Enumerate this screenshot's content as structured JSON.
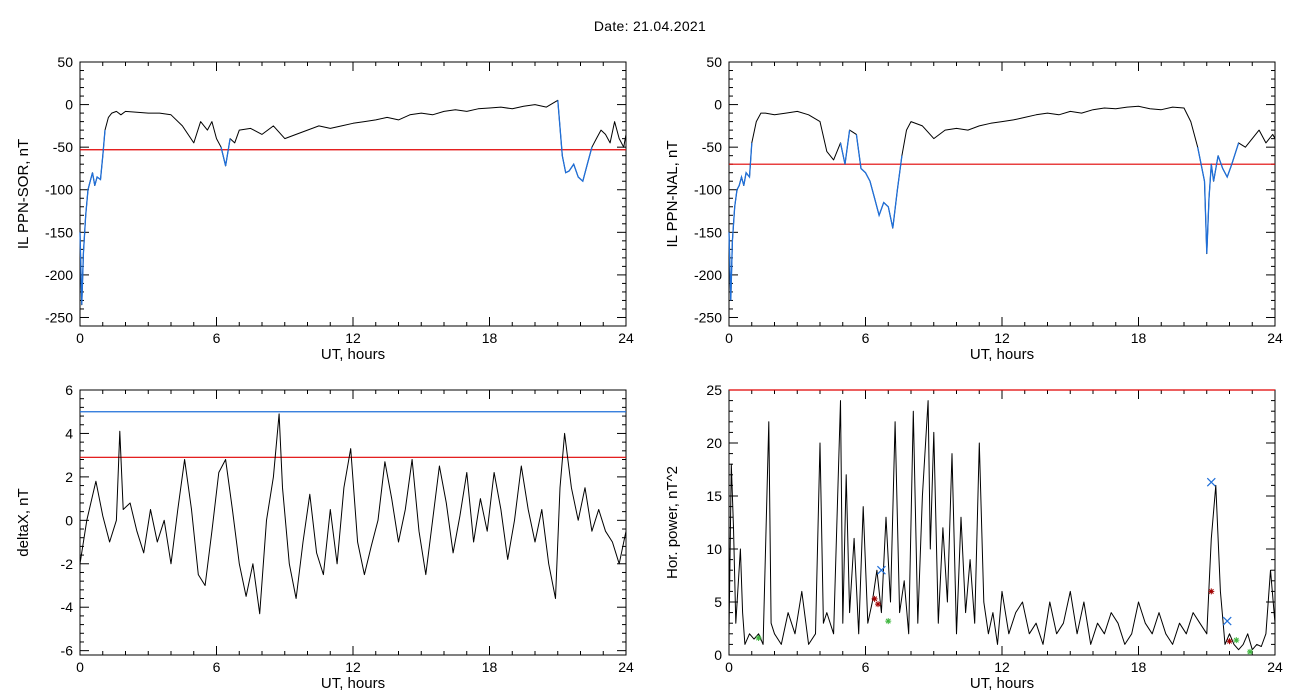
{
  "header": {
    "title": "Date:  21.04.2021"
  },
  "colors": {
    "black": "#000000",
    "red": "#e00000",
    "blue": "#1f6fd9",
    "green": "#3fb63f",
    "darkred": "#a00000"
  },
  "chart_data": [
    {
      "id": "sor",
      "type": "line",
      "xlabel": "UT, hours",
      "ylabel": "IL PPN-SOR, nT",
      "xlim": [
        0,
        24
      ],
      "ylim": [
        -260,
        50
      ],
      "xticks": [
        0,
        6,
        12,
        18,
        24
      ],
      "yticks": [
        50,
        0,
        -50,
        -100,
        -150,
        -200,
        -250
      ],
      "threshold": {
        "value": -53,
        "color": "red"
      },
      "below_threshold_color": "blue",
      "series": [
        {
          "x": [
            0,
            0.08,
            0.15,
            0.25,
            0.35,
            0.45,
            0.55,
            0.65,
            0.75,
            0.9,
            1.0,
            1.1,
            1.25,
            1.4,
            1.6,
            1.8,
            2.0,
            2.5,
            3.0,
            3.5,
            4.0,
            4.5,
            5.0,
            5.3,
            5.6,
            5.8,
            6.0,
            6.2,
            6.4,
            6.6,
            6.8,
            7.0,
            7.5,
            8.0,
            8.5,
            9.0,
            9.5,
            10.0,
            10.5,
            11.0,
            11.5,
            12.0,
            12.5,
            13.0,
            13.5,
            14.0,
            14.5,
            15.0,
            15.5,
            16.0,
            16.5,
            17.0,
            17.5,
            18.0,
            18.5,
            19.0,
            19.5,
            20.0,
            20.5,
            21.0,
            21.2,
            21.35,
            21.5,
            21.7,
            21.9,
            22.1,
            22.3,
            22.5,
            22.7,
            22.9,
            23.1,
            23.3,
            23.5,
            23.7,
            23.9,
            24.0
          ],
          "y": [
            -150,
            -235,
            -175,
            -130,
            -100,
            -90,
            -80,
            -95,
            -85,
            -88,
            -60,
            -30,
            -15,
            -10,
            -8,
            -12,
            -8,
            -9,
            -10,
            -10,
            -12,
            -25,
            -45,
            -20,
            -30,
            -20,
            -40,
            -50,
            -72,
            -40,
            -45,
            -30,
            -28,
            -35,
            -25,
            -40,
            -35,
            -30,
            -25,
            -28,
            -25,
            -22,
            -20,
            -18,
            -15,
            -18,
            -12,
            -10,
            -12,
            -8,
            -6,
            -8,
            -5,
            -4,
            -3,
            -5,
            -2,
            0,
            -3,
            5,
            -60,
            -80,
            -78,
            -70,
            -85,
            -90,
            -70,
            -50,
            -40,
            -30,
            -35,
            -45,
            -20,
            -40,
            -50,
            -35
          ]
        }
      ]
    },
    {
      "id": "nal",
      "type": "line",
      "xlabel": "UT, hours",
      "ylabel": "IL PPN-NAL, nT",
      "xlim": [
        0,
        24
      ],
      "ylim": [
        -260,
        50
      ],
      "xticks": [
        0,
        6,
        12,
        18,
        24
      ],
      "yticks": [
        50,
        0,
        -50,
        -100,
        -150,
        -200,
        -250
      ],
      "threshold": {
        "value": -70,
        "color": "red"
      },
      "below_threshold_color": "blue",
      "series": [
        {
          "x": [
            0,
            0.08,
            0.15,
            0.25,
            0.35,
            0.45,
            0.55,
            0.65,
            0.75,
            0.9,
            1.0,
            1.2,
            1.4,
            1.6,
            2.0,
            2.5,
            3.0,
            3.5,
            4.0,
            4.3,
            4.6,
            4.9,
            5.1,
            5.3,
            5.6,
            5.8,
            6.0,
            6.2,
            6.4,
            6.6,
            6.8,
            7.0,
            7.2,
            7.4,
            7.6,
            7.8,
            8.0,
            8.5,
            9.0,
            9.5,
            10.0,
            10.5,
            11.0,
            11.5,
            12.0,
            12.5,
            13.0,
            13.5,
            14.0,
            14.5,
            15.0,
            15.5,
            16.0,
            16.5,
            17.0,
            17.5,
            18.0,
            18.5,
            19.0,
            19.5,
            20.0,
            20.3,
            20.6,
            20.9,
            21.0,
            21.1,
            21.2,
            21.3,
            21.5,
            21.7,
            21.9,
            22.1,
            22.4,
            22.7,
            23.0,
            23.3,
            23.6,
            23.9,
            24.0
          ],
          "y": [
            -150,
            -230,
            -160,
            -120,
            -100,
            -95,
            -85,
            -95,
            -80,
            -85,
            -45,
            -20,
            -10,
            -10,
            -12,
            -10,
            -8,
            -12,
            -20,
            -55,
            -65,
            -45,
            -70,
            -30,
            -35,
            -75,
            -80,
            -90,
            -110,
            -130,
            -115,
            -120,
            -145,
            -100,
            -60,
            -30,
            -20,
            -25,
            -40,
            -30,
            -28,
            -30,
            -25,
            -22,
            -20,
            -18,
            -15,
            -12,
            -10,
            -12,
            -8,
            -10,
            -6,
            -4,
            -5,
            -3,
            -2,
            -5,
            -6,
            -3,
            -4,
            -20,
            -50,
            -90,
            -175,
            -110,
            -70,
            -90,
            -60,
            -75,
            -85,
            -70,
            -45,
            -50,
            -40,
            -30,
            -45,
            -35,
            -40
          ]
        }
      ]
    },
    {
      "id": "deltax",
      "type": "line",
      "xlabel": "UT, hours",
      "ylabel": "deltaX, nT",
      "xlim": [
        0,
        24
      ],
      "ylim": [
        -6.2,
        6
      ],
      "xticks": [
        0,
        6,
        12,
        18,
        24
      ],
      "yticks": [
        6,
        4,
        2,
        0,
        -2,
        -4,
        -6
      ],
      "thresholds": [
        {
          "value": 5.0,
          "color": "blue"
        },
        {
          "value": 2.9,
          "color": "red"
        }
      ],
      "series": [
        {
          "x": [
            0,
            0.3,
            0.7,
            1.0,
            1.3,
            1.6,
            1.75,
            1.9,
            2.2,
            2.5,
            2.8,
            3.1,
            3.4,
            3.7,
            4.0,
            4.3,
            4.6,
            4.9,
            5.2,
            5.5,
            5.8,
            6.1,
            6.4,
            6.7,
            7.0,
            7.3,
            7.6,
            7.9,
            8.2,
            8.5,
            8.75,
            8.9,
            9.2,
            9.5,
            9.8,
            10.1,
            10.4,
            10.7,
            11.0,
            11.3,
            11.6,
            11.9,
            12.2,
            12.5,
            12.8,
            13.1,
            13.4,
            13.7,
            14.0,
            14.3,
            14.6,
            14.9,
            15.2,
            15.5,
            15.8,
            16.1,
            16.4,
            16.7,
            17.0,
            17.3,
            17.6,
            17.9,
            18.2,
            18.5,
            18.8,
            19.1,
            19.4,
            19.7,
            20.0,
            20.3,
            20.6,
            20.9,
            21.1,
            21.3,
            21.6,
            21.9,
            22.2,
            22.5,
            22.8,
            23.1,
            23.4,
            23.7,
            24.0
          ],
          "y": [
            -2,
            0,
            1.8,
            0.2,
            -1,
            0,
            4.1,
            0.5,
            0.8,
            -0.5,
            -1.5,
            0.5,
            -1,
            0,
            -2,
            0.5,
            2.8,
            0.5,
            -2.5,
            -3,
            -0.5,
            2.2,
            2.8,
            0.5,
            -2,
            -3.5,
            -2,
            -4.3,
            0,
            2,
            4.9,
            1.5,
            -2,
            -3.6,
            -1,
            1.2,
            -1.5,
            -2.5,
            0.5,
            -2,
            1.5,
            3.3,
            -1,
            -2.5,
            -1.2,
            0,
            2.7,
            1,
            -1,
            0.5,
            2.8,
            -0.5,
            -2.5,
            0,
            2.5,
            0.8,
            -1.5,
            0.2,
            2.2,
            -1,
            1,
            -0.5,
            2.2,
            0.5,
            -1.8,
            0,
            2.5,
            0.5,
            -1,
            0.5,
            -2,
            -3.6,
            1.5,
            4,
            1.5,
            0,
            1.5,
            -0.5,
            0.5,
            -0.5,
            -1,
            -2,
            -0.5
          ]
        }
      ]
    },
    {
      "id": "power",
      "type": "line",
      "xlabel": "UT, hours",
      "ylabel": "Hor. power, nT^2",
      "xlim": [
        0,
        24
      ],
      "ylim": [
        0,
        25
      ],
      "xticks": [
        0,
        6,
        12,
        18,
        24
      ],
      "yticks": [
        25,
        20,
        15,
        10,
        5,
        0
      ],
      "threshold": {
        "value": 25,
        "color": "red"
      },
      "series": [
        {
          "x": [
            0,
            0.1,
            0.2,
            0.3,
            0.5,
            0.6,
            0.7,
            0.9,
            1.1,
            1.3,
            1.5,
            1.75,
            1.85,
            2.0,
            2.3,
            2.6,
            2.9,
            3.2,
            3.5,
            3.8,
            4.0,
            4.15,
            4.3,
            4.6,
            4.9,
            5.0,
            5.15,
            5.3,
            5.5,
            5.7,
            5.9,
            6.1,
            6.3,
            6.5,
            6.7,
            6.9,
            7.1,
            7.3,
            7.5,
            7.7,
            7.9,
            8.1,
            8.3,
            8.5,
            8.75,
            8.85,
            9.0,
            9.2,
            9.4,
            9.6,
            9.8,
            10.0,
            10.2,
            10.4,
            10.6,
            10.8,
            11.0,
            11.2,
            11.4,
            11.6,
            11.8,
            12.0,
            12.3,
            12.6,
            12.9,
            13.2,
            13.5,
            13.8,
            14.1,
            14.4,
            14.7,
            15.0,
            15.3,
            15.6,
            15.9,
            16.2,
            16.5,
            16.8,
            17.1,
            17.4,
            17.7,
            18.0,
            18.3,
            18.6,
            18.9,
            19.2,
            19.5,
            19.8,
            20.1,
            20.4,
            20.7,
            21.0,
            21.2,
            21.4,
            21.6,
            21.8,
            22.0,
            22.2,
            22.4,
            22.6,
            22.8,
            23.0,
            23.2,
            23.4,
            23.6,
            23.8,
            24.0
          ],
          "y": [
            2,
            18,
            12,
            3,
            10,
            4,
            1,
            2,
            1.5,
            2,
            1,
            22,
            3,
            2,
            1,
            4,
            2,
            6,
            1,
            2,
            20,
            3,
            4,
            2,
            24,
            3,
            17,
            4,
            11,
            2,
            14,
            3,
            5,
            8,
            4,
            13,
            5,
            22,
            4,
            7,
            2,
            23,
            3,
            15,
            24,
            10,
            21,
            3,
            12,
            5,
            19,
            2,
            13,
            4,
            9,
            3,
            20,
            5,
            2,
            4,
            1,
            6,
            2,
            4,
            5,
            2,
            3,
            1,
            5,
            2,
            3,
            6,
            2,
            5,
            1,
            3,
            2,
            4,
            3,
            1,
            2,
            5,
            3,
            2,
            4,
            2,
            1,
            3,
            2,
            4,
            3,
            2,
            11,
            16,
            6,
            1,
            2,
            1,
            0.5,
            1,
            2,
            0.5,
            1,
            0.8,
            2,
            8,
            3
          ]
        }
      ],
      "markers": [
        {
          "x": 6.7,
          "y": 8,
          "symbol": "x",
          "color": "blue"
        },
        {
          "x": 21.2,
          "y": 16.3,
          "symbol": "x",
          "color": "blue"
        },
        {
          "x": 21.9,
          "y": 3.2,
          "symbol": "x",
          "color": "blue"
        },
        {
          "x": 6.4,
          "y": 5.3,
          "symbol": "*",
          "color": "darkred"
        },
        {
          "x": 6.55,
          "y": 4.8,
          "symbol": "*",
          "color": "darkred"
        },
        {
          "x": 21.2,
          "y": 6,
          "symbol": "*",
          "color": "darkred"
        },
        {
          "x": 22.0,
          "y": 1.3,
          "symbol": "*",
          "color": "darkred"
        },
        {
          "x": 7.0,
          "y": 3.2,
          "symbol": "*",
          "color": "green"
        },
        {
          "x": 1.3,
          "y": 1.6,
          "symbol": "*",
          "color": "green"
        },
        {
          "x": 22.3,
          "y": 1.4,
          "symbol": "*",
          "color": "green"
        },
        {
          "x": 22.9,
          "y": 0.3,
          "symbol": "*",
          "color": "green"
        }
      ]
    }
  ]
}
